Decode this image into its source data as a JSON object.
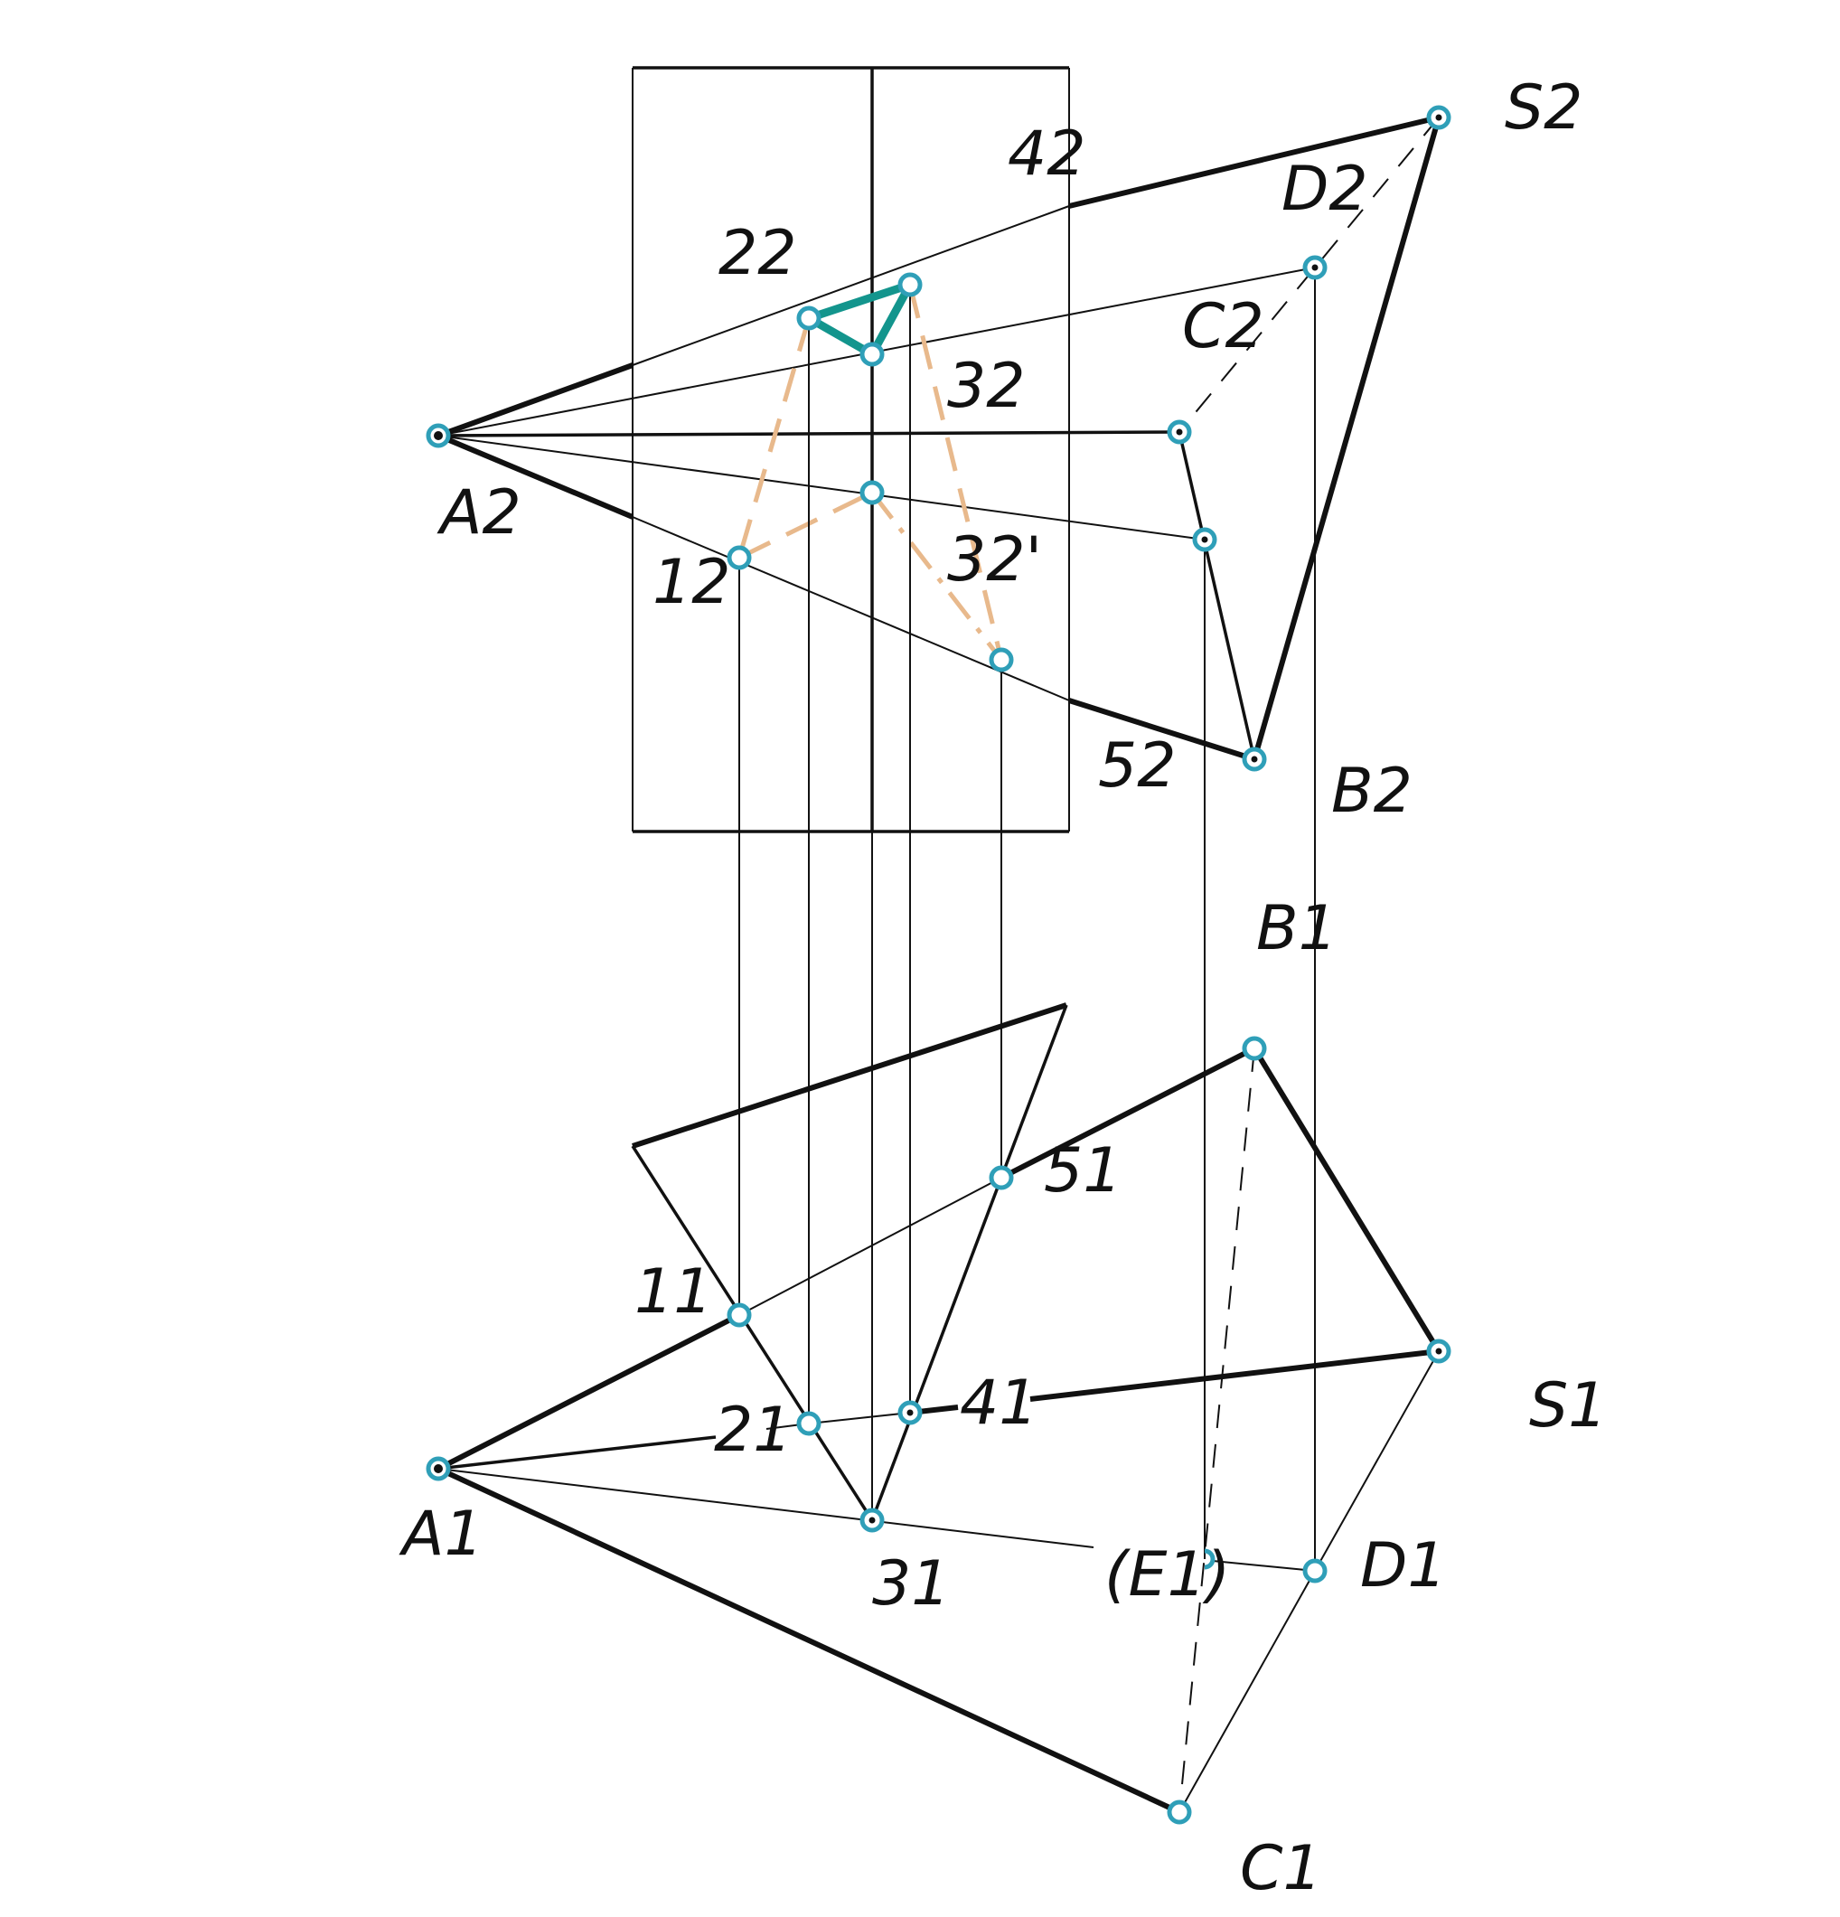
{
  "labels": {
    "S2": "S2",
    "D2": "D2",
    "C2": "C2",
    "A2": "A2",
    "B2": "B2",
    "n42": "42",
    "n22": "22",
    "n32": "32",
    "n32p": "32'",
    "n12": "12",
    "n52": "52",
    "B1": "B1",
    "n51": "51",
    "n11": "11",
    "n21": "21",
    "n41": "41",
    "S1": "S1",
    "A1": "A1",
    "n31": "31",
    "E1": "(E1)",
    "D1": "D1",
    "C1": "C1"
  },
  "colors": {
    "line": "#111111",
    "point_ring": "#2f9fb8",
    "section_outline": "#13958d",
    "construction_dashed": "#e8b98c"
  }
}
